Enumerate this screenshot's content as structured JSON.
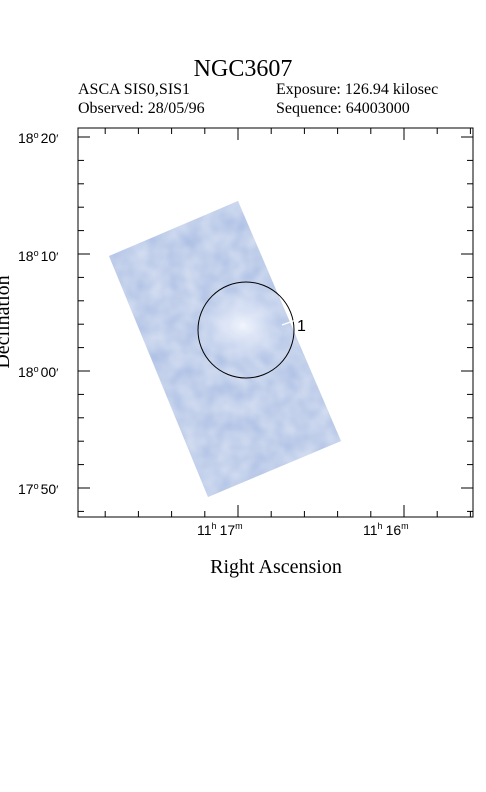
{
  "title": "NGC3607",
  "header": {
    "instrument": "ASCA SIS0,SIS1",
    "exposure": "Exposure: 126.94 kilosec",
    "observed": "Observed: 28/05/96",
    "sequence": "Sequence: 64003000"
  },
  "axes": {
    "xlabel": "Right Ascension",
    "ylabel": "Declination",
    "dec_ticks": [
      {
        "deg": "18",
        "min": "20"
      },
      {
        "deg": "18",
        "min": "10"
      },
      {
        "deg": "18",
        "min": "00"
      },
      {
        "deg": "17",
        "min": "50"
      }
    ],
    "ra_ticks": [
      {
        "h": "11",
        "m": "17"
      },
      {
        "h": "11",
        "m": "16"
      }
    ]
  },
  "source_marker": {
    "label": "1"
  },
  "colors": {
    "field": "#a9bde3",
    "field_light": "#dde6f7",
    "circle": "#000000"
  }
}
